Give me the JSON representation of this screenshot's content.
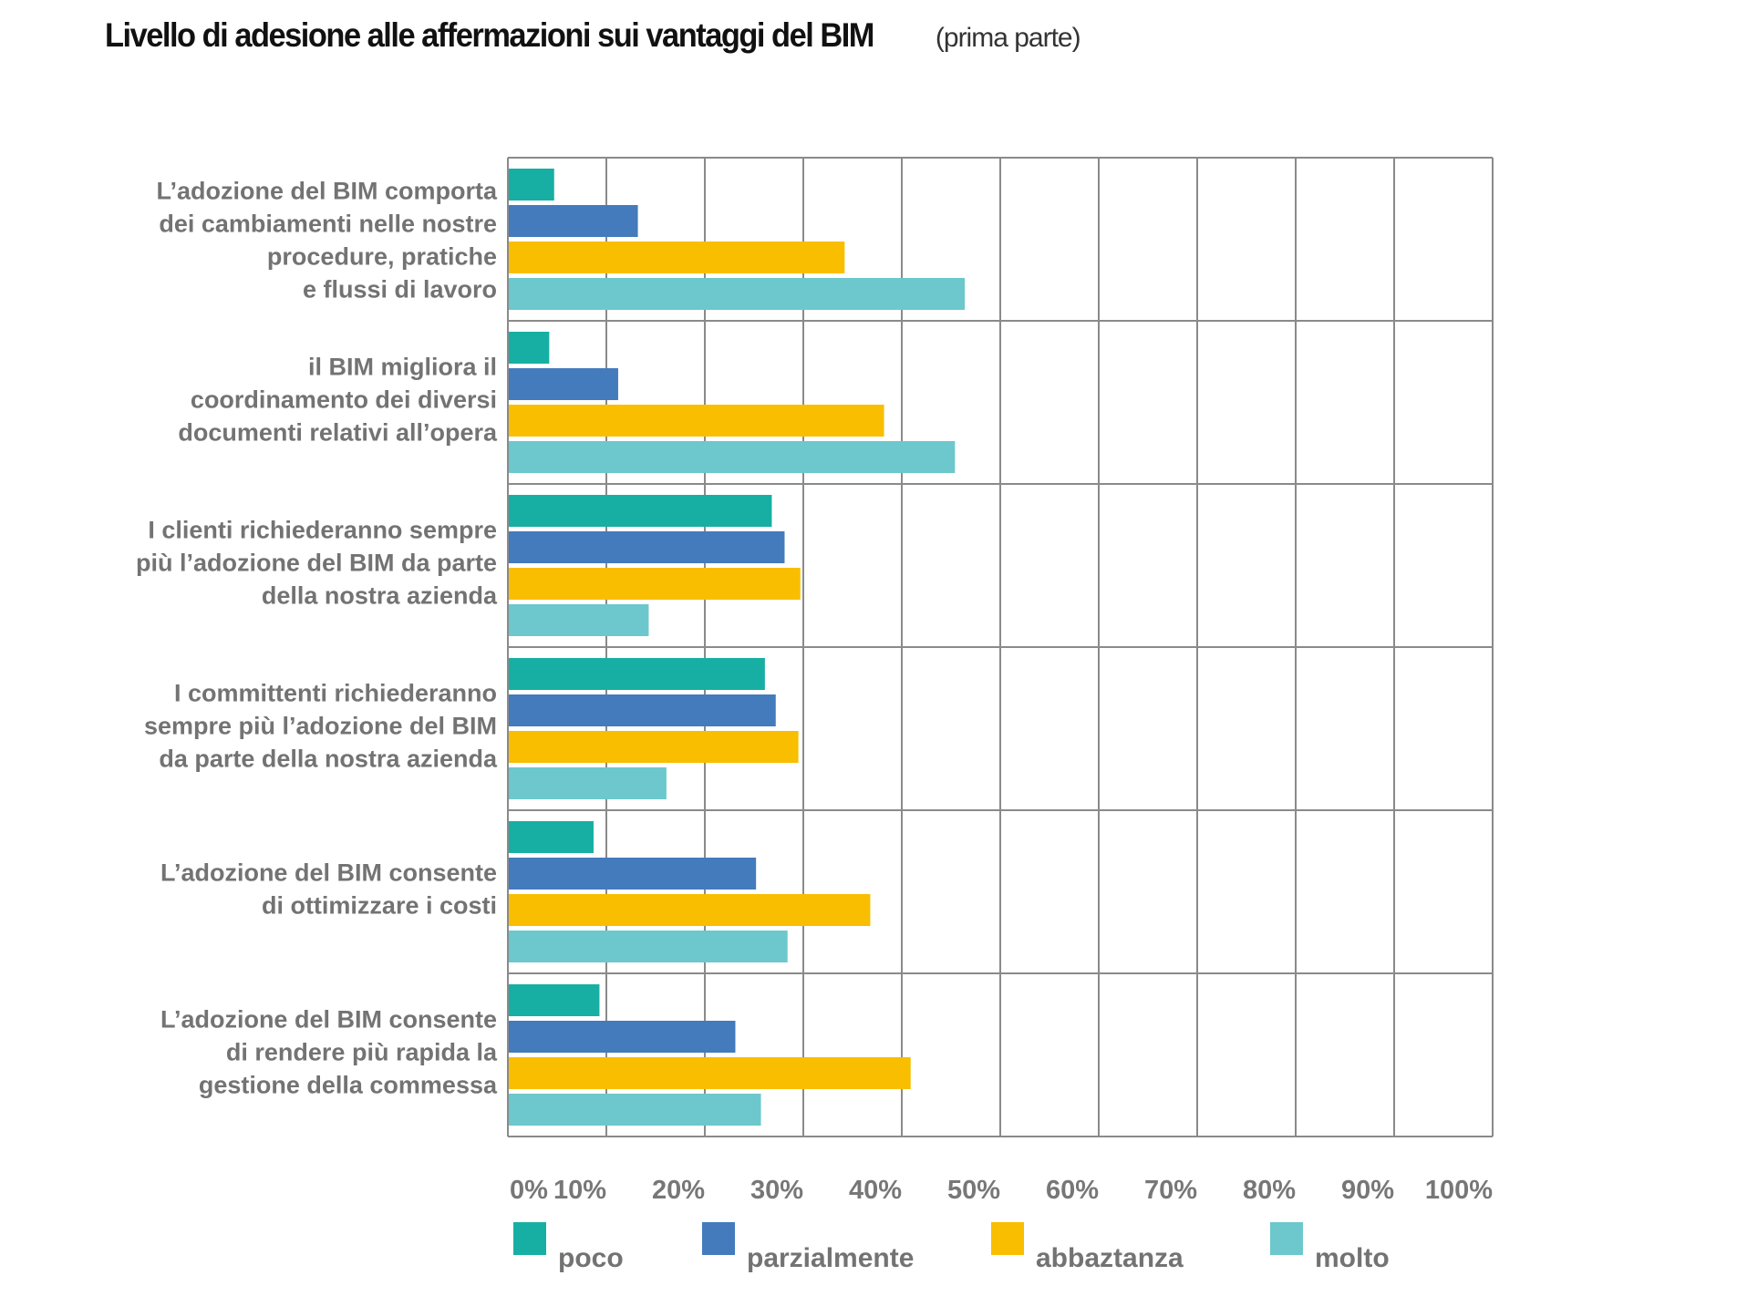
{
  "title": {
    "main": "Livello di adesione alle affermazioni  sui vantaggi del BIM",
    "sub": "(prima parte)"
  },
  "chart_data": {
    "type": "bar",
    "orientation": "horizontal",
    "title": "Livello di adesione alle affermazioni sui vantaggi del BIM (prima parte)",
    "xlabel": "",
    "ylabel": "",
    "xlim": [
      0,
      100
    ],
    "x_unit": "%",
    "grid": true,
    "legend_position": "bottom",
    "x_ticks": [
      "0%",
      "10%",
      "20%",
      "30%",
      "40%",
      "50%",
      "60%",
      "70%",
      "80%",
      "90%",
      "100%"
    ],
    "categories": [
      [
        "L’adozione del BIM comporta",
        "dei cambiamenti nelle nostre",
        "procedure, pratiche",
        "e flussi di lavoro"
      ],
      [
        "il BIM migliora il",
        "coordinamento dei diversi",
        "documenti relativi all’opera"
      ],
      [
        "I clienti richiederanno sempre",
        "più l’adozione del BIM da parte",
        "della nostra azienda"
      ],
      [
        "I committenti richiederanno",
        "sempre più l’adozione del BIM",
        "da parte della nostra azienda"
      ],
      [
        "L’adozione del BIM consente",
        "di ottimizzare i costi"
      ],
      [
        "L’adozione del BIM consente",
        "di rendere più rapida la",
        "gestione della commessa"
      ]
    ],
    "series": [
      {
        "name": "poco",
        "color": "#17AFA3",
        "values": [
          4.7,
          4.2,
          26.8,
          26.1,
          8.7,
          9.3
        ]
      },
      {
        "name": "parzialmente",
        "color": "#437BBD",
        "values": [
          13.2,
          11.2,
          28.1,
          27.2,
          25.2,
          23.1
        ]
      },
      {
        "name": "abbaztanza",
        "color": "#F9BE00",
        "values": [
          34.2,
          38.2,
          29.7,
          29.5,
          36.8,
          40.9
        ]
      },
      {
        "name": "molto",
        "color": "#6CC8CC",
        "values": [
          46.4,
          45.4,
          14.3,
          16.1,
          28.4,
          25.7
        ]
      }
    ]
  },
  "style": {
    "grid_color": "#8A8A8A",
    "text_color": "#737373"
  }
}
